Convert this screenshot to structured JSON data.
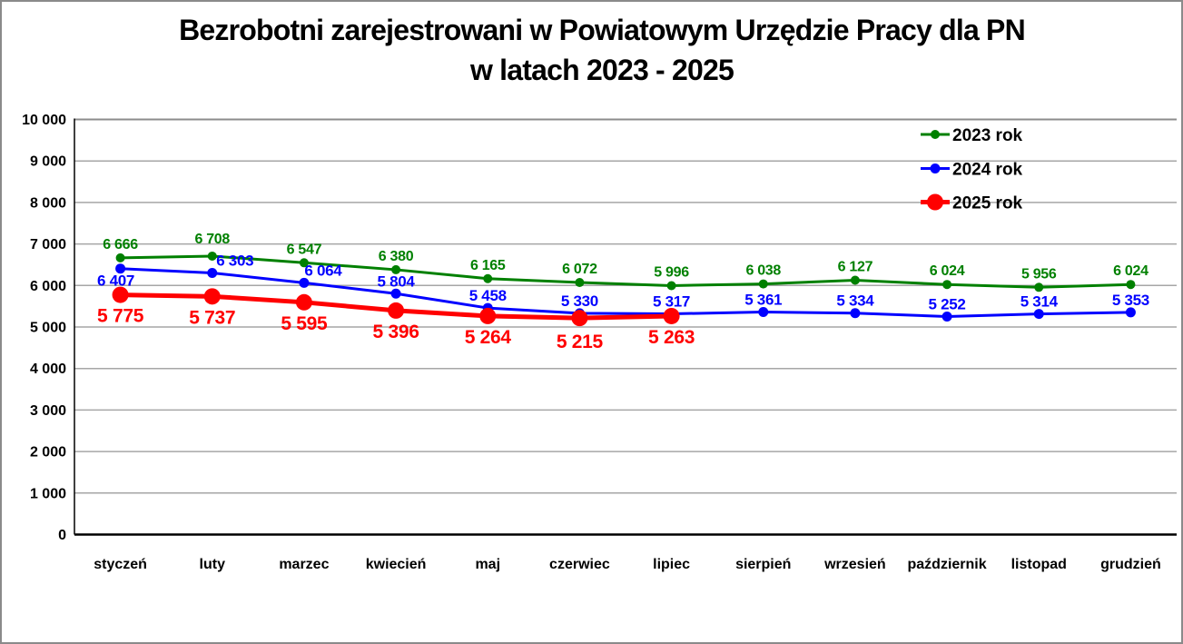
{
  "title": {
    "line1": "Bezrobotni zarejestrowani w Powiatowym Urzędzie Pracy dla PN",
    "line2": "w latach 2023 - 2025"
  },
  "chart_data": {
    "type": "line",
    "categories": [
      "styczeń",
      "luty",
      "marzec",
      "kwiecień",
      "maj",
      "czerwiec",
      "lipiec",
      "sierpień",
      "wrzesień",
      "październik",
      "listopad",
      "grudzień"
    ],
    "series": [
      {
        "name": "2023 rok",
        "color": "#008000",
        "marker": "circle",
        "values": [
          6666,
          6708,
          6547,
          6380,
          6165,
          6072,
          5996,
          6038,
          6127,
          6024,
          5956,
          6024
        ]
      },
      {
        "name": "2024 rok",
        "color": "#0000FF",
        "marker": "circle",
        "values": [
          6407,
          6303,
          6064,
          5804,
          5458,
          5330,
          5317,
          5361,
          5334,
          5252,
          5314,
          5353
        ]
      },
      {
        "name": "2025 rok",
        "color": "#FF0000",
        "marker": "circle",
        "values": [
          5775,
          5737,
          5595,
          5396,
          5264,
          5215,
          5263
        ]
      }
    ],
    "xlabel": "",
    "ylabel": "",
    "ylim": [
      0,
      10000
    ],
    "ytick_step": 1000,
    "ytick_labels": [
      "0",
      "1 000",
      "2 000",
      "3 000",
      "4 000",
      "5 000",
      "6 000",
      "7 000",
      "8 000",
      "9 000",
      "10 000"
    ],
    "grid": true,
    "legend_position": "top-right",
    "data_labels": true,
    "label_number_format": "space-thousands"
  },
  "colors": {
    "background": "#FFFFFF",
    "frame_border": "#8A8A8A",
    "gridline": "#A6A6A6",
    "top_gridline": "#8C8C8C",
    "axis": "#000000",
    "title_text": "#000000"
  }
}
